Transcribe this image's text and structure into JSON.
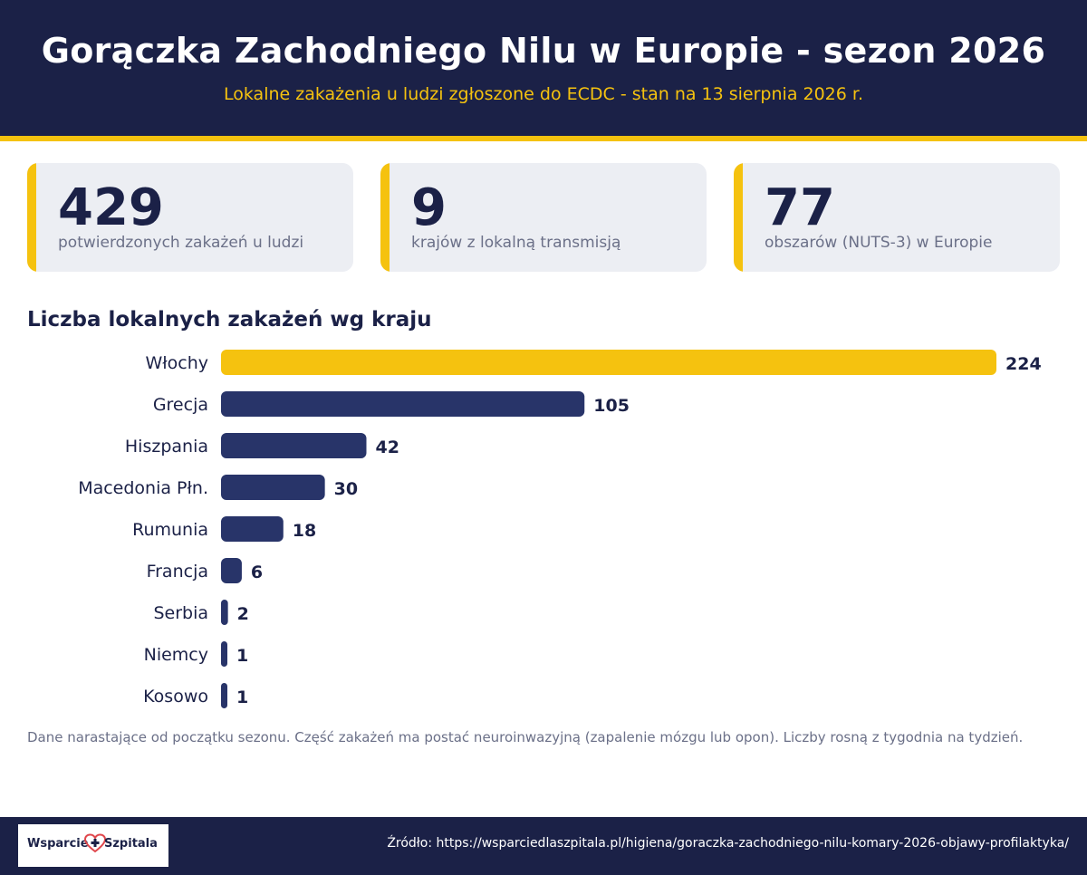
{
  "header": {
    "title": "Gorączka Zachodniego Nilu w Europie - sezon 2026",
    "subtitle": "Lokalne zakażenia u ludzi zgłoszone do ECDC - stan na 13 sierpnia 2026 r."
  },
  "stats": [
    {
      "value": "429",
      "label": "potwierdzonych zakażeń u ludzi"
    },
    {
      "value": "9",
      "label": "krajów z lokalną transmisją"
    },
    {
      "value": "77",
      "label": "obszarów (NUTS-3) w Europie"
    }
  ],
  "chart_data": {
    "type": "bar",
    "orientation": "horizontal",
    "title": "Liczba lokalnych zakażeń wg kraju",
    "categories": [
      "Włochy",
      "Grecja",
      "Hiszpania",
      "Macedonia Płn.",
      "Rumunia",
      "Francja",
      "Serbia",
      "Niemcy",
      "Kosowo"
    ],
    "values": [
      224,
      105,
      42,
      30,
      18,
      6,
      2,
      1,
      1
    ],
    "highlight_index": 0,
    "colors": {
      "highlight": "#f5c20f",
      "default": "#283469",
      "label": "#1b2147"
    },
    "xlim": [
      0,
      224
    ],
    "grid": false,
    "data_labels": true
  },
  "note": "Dane narastające od początku sezonu. Część zakażeń ma postać neuroinwazyjną (zapalenie mózgu lub opon). Liczby rosną z tygodnia na tydzień.",
  "footer": {
    "logo_left": "Wsparcie",
    "logo_right": "Szpitala",
    "logo_icon": "heart-cross-icon",
    "source": "Źródło: https://wsparciedlaszpitala.pl/higiena/goraczka-zachodniego-nilu-komary-2026-objawy-profilaktyka/"
  },
  "colors": {
    "navy": "#1b2147",
    "accent": "#f5c20f",
    "card_bg": "#eceef3",
    "muted_text": "#6b7088"
  }
}
